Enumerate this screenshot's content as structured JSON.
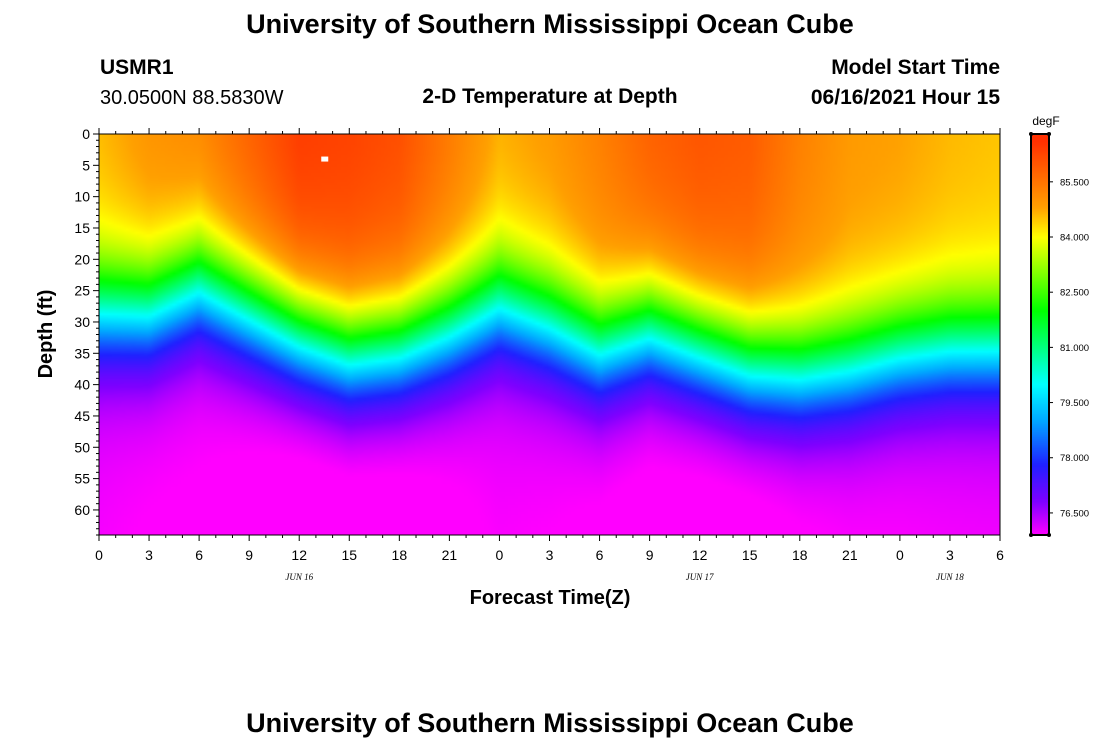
{
  "header": {
    "title_top": "University of Southern Mississippi Ocean Cube",
    "station_id": "USMR1",
    "station_coords": "30.0500N  88.5830W",
    "plot_title": "2-D Temperature at Depth",
    "model_start_label": "Model Start Time",
    "model_start_value": "06/16/2021 Hour 15",
    "title_bottom": "University of Southern Mississippi Ocean Cube"
  },
  "chart_data": {
    "type": "heatmap",
    "title": "2-D Temperature at Depth",
    "xlabel": "Forecast Time(Z)",
    "ylabel": "Depth (ft)",
    "x_ticks": [
      "0",
      "3",
      "6",
      "9",
      "12",
      "15",
      "18",
      "21",
      "0",
      "3",
      "6",
      "9",
      "12",
      "15",
      "18",
      "21",
      "0",
      "3",
      "6"
    ],
    "date_labels": [
      {
        "label": "JUN 16",
        "hour_index": 12
      },
      {
        "label": "JUN 17",
        "hour_index": 36
      },
      {
        "label": "JUN 18",
        "hour_index": 51
      }
    ],
    "x_range_hours": [
      0,
      54
    ],
    "y_ticks": [
      0,
      5,
      10,
      15,
      20,
      25,
      30,
      35,
      40,
      45,
      50,
      55,
      60
    ],
    "ylim": [
      0,
      64
    ],
    "colorbar": {
      "unit": "degF",
      "range": [
        75.9,
        86.8
      ],
      "ticks": [
        "85.500",
        "84.000",
        "82.500",
        "81.000",
        "79.500",
        "78.000",
        "76.500"
      ],
      "colors": [
        "#ff00ff",
        "#8000ff",
        "#2020ff",
        "#00a8ff",
        "#00ffff",
        "#00ff00",
        "#ffff00",
        "#ffa000",
        "#ff3000"
      ],
      "color_stops": [
        75.9,
        76.8,
        77.8,
        79.0,
        80.0,
        82.0,
        84.0,
        84.8,
        86.6
      ]
    },
    "thermocline_depth_ft": {
      "hours": [
        0,
        3,
        6,
        9,
        12,
        15,
        18,
        21,
        24,
        27,
        30,
        33,
        36,
        39,
        42,
        45,
        48,
        51,
        54
      ],
      "values": [
        28,
        28,
        24,
        28,
        32,
        35,
        34,
        31,
        27,
        30,
        34,
        31,
        34,
        37,
        38,
        37,
        35,
        34,
        34
      ]
    },
    "surface_temp_degF": {
      "hours": [
        0,
        3,
        6,
        9,
        12,
        15,
        18,
        21,
        24,
        27,
        30,
        33,
        36,
        39,
        42,
        45,
        48,
        51,
        54
      ],
      "values": [
        84.6,
        85.0,
        85.2,
        85.8,
        86.4,
        86.3,
        86.1,
        85.4,
        84.7,
        84.9,
        85.3,
        85.8,
        86.0,
        85.9,
        85.3,
        84.9,
        84.8,
        84.6,
        84.5
      ]
    },
    "bottom_temp_degF": 76.1,
    "marker": {
      "hour": 13.5,
      "depth_ft": 4
    }
  }
}
